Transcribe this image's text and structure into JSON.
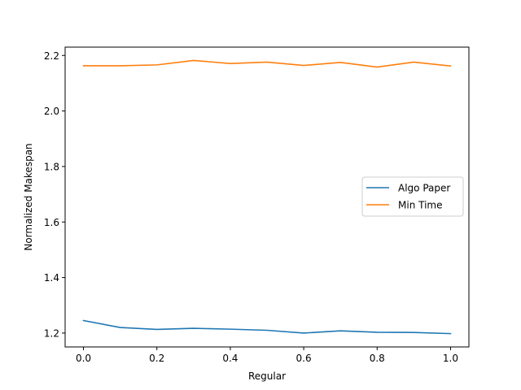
{
  "chart_data": {
    "type": "line",
    "title": "",
    "xlabel": "Regular",
    "ylabel": "Normalized Makespan",
    "xlim": [
      -0.05,
      1.05
    ],
    "ylim": [
      1.15,
      2.23
    ],
    "xticks": [
      0.0,
      0.2,
      0.4,
      0.6,
      0.8,
      1.0
    ],
    "xtick_labels": [
      "0.0",
      "0.2",
      "0.4",
      "0.6",
      "0.8",
      "1.0"
    ],
    "yticks": [
      1.2,
      1.4,
      1.6,
      1.8,
      2.0,
      2.2
    ],
    "ytick_labels": [
      "1.2",
      "1.4",
      "1.6",
      "1.8",
      "2.0",
      "2.2"
    ],
    "grid": false,
    "legend_position": "center-right",
    "x": [
      0.0,
      0.1,
      0.2,
      0.3,
      0.4,
      0.5,
      0.6,
      0.7,
      0.8,
      0.9,
      1.0
    ],
    "series": [
      {
        "name": "Algo Paper",
        "color": "#1f77b4",
        "values": [
          1.245,
          1.22,
          1.213,
          1.217,
          1.214,
          1.21,
          1.2,
          1.208,
          1.203,
          1.202,
          1.198
        ]
      },
      {
        "name": "Min Time",
        "color": "#ff7f0e",
        "values": [
          2.163,
          2.163,
          2.166,
          2.182,
          2.171,
          2.176,
          2.164,
          2.175,
          2.158,
          2.176,
          2.162
        ]
      }
    ]
  }
}
